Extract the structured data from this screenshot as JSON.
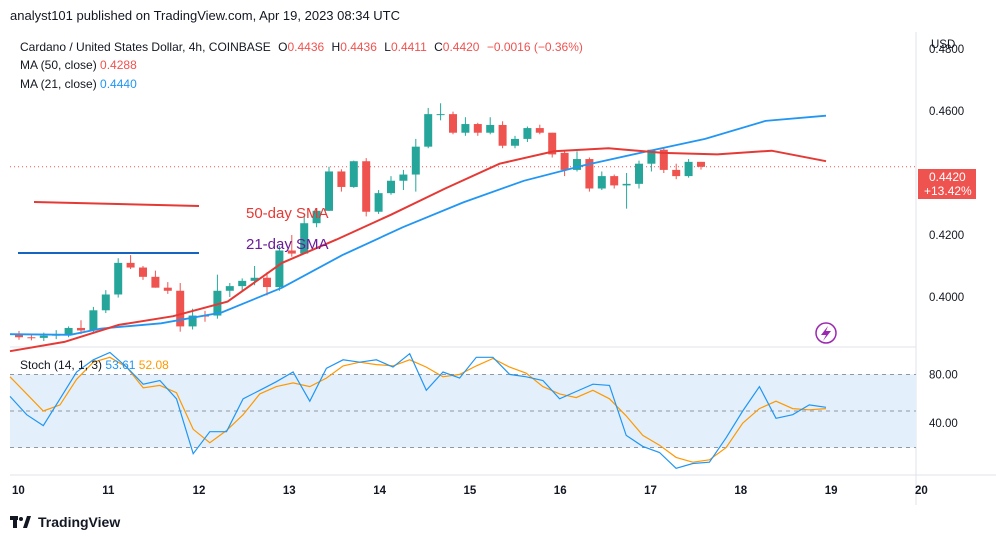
{
  "header": {
    "text": "analyst101 published on TradingView.com, Apr 19, 2023 08:34 UTC"
  },
  "legend": {
    "symbol": "Cardano / United States Dollar, 4h, COINBASE",
    "o_label": "O",
    "o_value": "0.4436",
    "h_label": "H",
    "h_value": "0.4436",
    "l_label": "L",
    "l_value": "0.4411",
    "c_label": "C",
    "c_value": "0.4420",
    "change": "−0.0016 (−0.36%)",
    "ma50_label": "MA (50, close)",
    "ma50_value": "0.4288",
    "ma21_label": "MA (21, close)",
    "ma21_value": "0.4440",
    "stoch_label": "Stoch (14, 1, 3)",
    "stoch_k": "53.61",
    "stoch_d": "52.08"
  },
  "annotations": {
    "sma50": "50-day SMA",
    "sma21": "21-day SMA"
  },
  "price_axis": {
    "currency": "USD",
    "ticks": [
      "0.4800",
      "0.4600",
      "0.4420",
      "0.4200",
      "0.4000"
    ],
    "last_price_label": "0.4420",
    "last_change_label": "+13.42%"
  },
  "stoch_axis": {
    "ticks": [
      "80.00",
      "40.00"
    ]
  },
  "x_axis": {
    "ticks": [
      "10",
      "11",
      "12",
      "13",
      "14",
      "15",
      "16",
      "17",
      "18",
      "19",
      "20"
    ]
  },
  "footer": {
    "brand": "TradingView"
  },
  "colors": {
    "up": "#26a69a",
    "down": "#ef5350",
    "ma21": "#2196f3",
    "ma50": "#e53935",
    "stoch_k": "#2196f3",
    "stoch_d": "#ff9800",
    "stoch_band": "#e3f0fb",
    "annotation_50": "#e53935",
    "annotation_21": "#6a1b9a",
    "lightning": "#9c27b0"
  },
  "chart_data": {
    "type": "candlestick",
    "title": "Cardano / United States Dollar, 4h, COINBASE",
    "ylim": [
      0.3845,
      0.4855
    ],
    "candles": [
      [
        0.3878,
        0.389,
        0.3862,
        0.387
      ],
      [
        0.387,
        0.388,
        0.386,
        0.3868
      ],
      [
        0.3868,
        0.3885,
        0.3858,
        0.3875
      ],
      [
        0.3875,
        0.3893,
        0.3864,
        0.388
      ],
      [
        0.388,
        0.3905,
        0.387,
        0.39
      ],
      [
        0.39,
        0.3925,
        0.388,
        0.3892
      ],
      [
        0.3892,
        0.3968,
        0.3885,
        0.3957
      ],
      [
        0.3957,
        0.4022,
        0.3948,
        0.4008
      ],
      [
        0.4008,
        0.4125,
        0.3998,
        0.411
      ],
      [
        0.411,
        0.4135,
        0.409,
        0.4095
      ],
      [
        0.4095,
        0.41,
        0.4055,
        0.4065
      ],
      [
        0.4065,
        0.4085,
        0.403,
        0.403
      ],
      [
        0.403,
        0.4048,
        0.401,
        0.402
      ],
      [
        0.402,
        0.4045,
        0.3888,
        0.3905
      ],
      [
        0.3905,
        0.3962,
        0.3895,
        0.394
      ],
      [
        0.394,
        0.3955,
        0.392,
        0.3938
      ],
      [
        0.394,
        0.4072,
        0.393,
        0.402
      ],
      [
        0.402,
        0.4045,
        0.4,
        0.4035
      ],
      [
        0.4035,
        0.406,
        0.4018,
        0.4052
      ],
      [
        0.4052,
        0.41,
        0.4038,
        0.4062
      ],
      [
        0.4062,
        0.408,
        0.4005,
        0.4032
      ],
      [
        0.4032,
        0.4165,
        0.402,
        0.415
      ],
      [
        0.415,
        0.42,
        0.413,
        0.414
      ],
      [
        0.414,
        0.4262,
        0.414,
        0.4238
      ],
      [
        0.4238,
        0.4285,
        0.4225,
        0.4278
      ],
      [
        0.4278,
        0.442,
        0.4278,
        0.4405
      ],
      [
        0.4405,
        0.4412,
        0.434,
        0.4355
      ],
      [
        0.4355,
        0.444,
        0.4352,
        0.4438
      ],
      [
        0.4438,
        0.4448,
        0.426,
        0.4275
      ],
      [
        0.4275,
        0.4345,
        0.4268,
        0.4335
      ],
      [
        0.4335,
        0.439,
        0.433,
        0.4375
      ],
      [
        0.4375,
        0.441,
        0.4345,
        0.4395
      ],
      [
        0.4395,
        0.451,
        0.434,
        0.4485
      ],
      [
        0.4485,
        0.461,
        0.448,
        0.459
      ],
      [
        0.459,
        0.4625,
        0.457,
        0.459
      ],
      [
        0.459,
        0.4598,
        0.4525,
        0.453
      ],
      [
        0.453,
        0.458,
        0.452,
        0.4558
      ],
      [
        0.4558,
        0.4562,
        0.452,
        0.453
      ],
      [
        0.453,
        0.458,
        0.4525,
        0.4555
      ],
      [
        0.4555,
        0.4567,
        0.448,
        0.4488
      ],
      [
        0.4488,
        0.452,
        0.448,
        0.451
      ],
      [
        0.451,
        0.455,
        0.45,
        0.4545
      ],
      [
        0.4545,
        0.4556,
        0.4525,
        0.453
      ],
      [
        0.453,
        0.453,
        0.445,
        0.446
      ],
      [
        0.4465,
        0.447,
        0.439,
        0.441
      ],
      [
        0.441,
        0.447,
        0.4405,
        0.4445
      ],
      [
        0.4445,
        0.445,
        0.434,
        0.435
      ],
      [
        0.435,
        0.4405,
        0.4345,
        0.439
      ],
      [
        0.439,
        0.4395,
        0.435,
        0.436
      ],
      [
        0.436,
        0.44,
        0.4285,
        0.4365
      ],
      [
        0.4365,
        0.444,
        0.435,
        0.443
      ],
      [
        0.443,
        0.4475,
        0.4405,
        0.4475
      ],
      [
        0.4475,
        0.448,
        0.44,
        0.441
      ],
      [
        0.441,
        0.443,
        0.438,
        0.439
      ],
      [
        0.439,
        0.4445,
        0.4385,
        0.4436
      ],
      [
        0.4436,
        0.4436,
        0.4411,
        0.442
      ]
    ],
    "ma21": [
      [
        0,
        0.3825
      ],
      [
        6,
        0.3855
      ],
      [
        12,
        0.391
      ],
      [
        18,
        0.3938
      ],
      [
        24,
        0.3985
      ],
      [
        30,
        0.411
      ],
      [
        36,
        0.4185
      ],
      [
        42,
        0.4265
      ],
      [
        48,
        0.435
      ],
      [
        54,
        0.443
      ],
      [
        60,
        0.447
      ],
      [
        66,
        0.448
      ],
      [
        72,
        0.4465
      ],
      [
        78,
        0.446
      ],
      [
        84,
        0.4472
      ],
      [
        90,
        0.4438
      ]
    ],
    "ma50": [
      [
        0,
        0.388
      ],
      [
        12,
        0.3878
      ],
      [
        18,
        0.3898
      ],
      [
        30,
        0.3915
      ],
      [
        42,
        0.395
      ],
      [
        54,
        0.403
      ],
      [
        66,
        0.4135
      ],
      [
        78,
        0.4225
      ],
      [
        90,
        0.4305
      ],
      [
        102,
        0.4375
      ],
      [
        114,
        0.4425
      ],
      [
        126,
        0.4468
      ],
      [
        138,
        0.451
      ],
      [
        150,
        0.4568
      ],
      [
        162,
        0.4585
      ]
    ],
    "stoch_ylim": [
      0,
      100
    ],
    "stoch_k": [
      [
        0,
        62
      ],
      [
        3,
        47
      ],
      [
        6,
        38
      ],
      [
        9,
        60
      ],
      [
        12,
        82
      ],
      [
        15,
        92
      ],
      [
        18,
        98
      ],
      [
        21,
        86
      ],
      [
        24,
        72
      ],
      [
        27,
        75
      ],
      [
        30,
        60
      ],
      [
        33,
        15
      ],
      [
        36,
        33
      ],
      [
        39,
        33
      ],
      [
        42,
        60
      ],
      [
        45,
        67
      ],
      [
        48,
        74
      ],
      [
        51,
        82
      ],
      [
        54,
        58
      ],
      [
        57,
        85
      ],
      [
        60,
        92
      ],
      [
        63,
        90
      ],
      [
        66,
        92
      ],
      [
        69,
        86
      ],
      [
        72,
        97
      ],
      [
        75,
        67
      ],
      [
        78,
        82
      ],
      [
        81,
        77
      ],
      [
        84,
        94
      ],
      [
        87,
        94
      ],
      [
        90,
        80
      ],
      [
        93,
        78
      ],
      [
        96,
        75
      ],
      [
        99,
        60
      ],
      [
        102,
        66
      ],
      [
        105,
        72
      ],
      [
        108,
        71
      ],
      [
        111,
        30
      ],
      [
        114,
        21
      ],
      [
        117,
        16
      ],
      [
        120,
        3
      ],
      [
        123,
        7
      ],
      [
        126,
        8
      ],
      [
        129,
        28
      ],
      [
        132,
        50
      ],
      [
        135,
        70
      ],
      [
        138,
        44
      ],
      [
        141,
        47
      ],
      [
        144,
        55
      ],
      [
        147,
        53
      ]
    ],
    "stoch_d": [
      [
        0,
        78
      ],
      [
        3,
        64
      ],
      [
        6,
        50
      ],
      [
        9,
        55
      ],
      [
        12,
        76
      ],
      [
        15,
        90
      ],
      [
        18,
        94
      ],
      [
        21,
        86
      ],
      [
        24,
        69
      ],
      [
        27,
        71
      ],
      [
        30,
        65
      ],
      [
        33,
        35
      ],
      [
        36,
        24
      ],
      [
        39,
        34
      ],
      [
        42,
        47
      ],
      [
        45,
        64
      ],
      [
        48,
        70
      ],
      [
        51,
        73
      ],
      [
        54,
        70
      ],
      [
        57,
        77
      ],
      [
        60,
        87
      ],
      [
        63,
        90
      ],
      [
        66,
        88
      ],
      [
        69,
        87
      ],
      [
        72,
        92
      ],
      [
        75,
        86
      ],
      [
        78,
        78
      ],
      [
        81,
        80
      ],
      [
        84,
        87
      ],
      [
        87,
        93
      ],
      [
        90,
        86
      ],
      [
        93,
        81
      ],
      [
        96,
        70
      ],
      [
        99,
        64
      ],
      [
        102,
        61
      ],
      [
        105,
        67
      ],
      [
        108,
        60
      ],
      [
        111,
        46
      ],
      [
        114,
        30
      ],
      [
        117,
        22
      ],
      [
        120,
        12
      ],
      [
        123,
        8
      ],
      [
        126,
        10
      ],
      [
        129,
        20
      ],
      [
        132,
        40
      ],
      [
        135,
        52
      ],
      [
        138,
        58
      ],
      [
        141,
        52
      ],
      [
        144,
        51
      ],
      [
        147,
        52
      ]
    ]
  }
}
